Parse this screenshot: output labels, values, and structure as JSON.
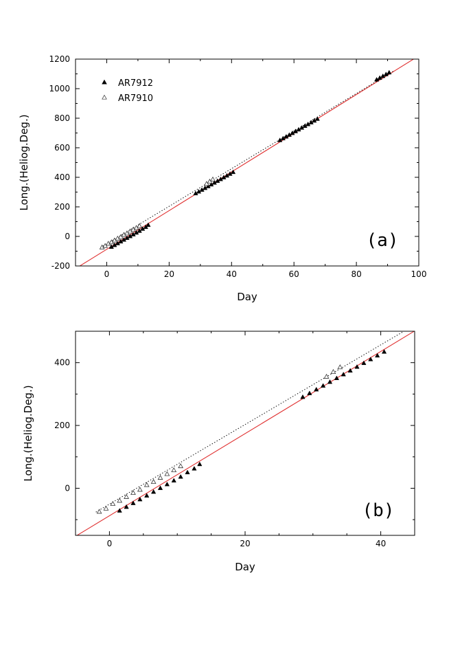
{
  "chart_data": [
    {
      "type": "scatter",
      "panel_label": "(a)",
      "xlabel": "Day",
      "ylabel": "Long.(Heliog.Deg.)",
      "xlim": [
        -10,
        100
      ],
      "ylim": [
        -200,
        1200
      ],
      "x_ticks": [
        0,
        20,
        40,
        60,
        80,
        100
      ],
      "y_ticks": [
        -200,
        0,
        200,
        400,
        600,
        800,
        1000,
        1200
      ],
      "legend": [
        "AR7912",
        "AR7910"
      ],
      "legend_position": "top-left",
      "series": [
        {
          "name": "AR7912",
          "marker": "filled-triangle",
          "x": [
            1.5,
            2.5,
            3.5,
            4.5,
            5.5,
            6.5,
            7.5,
            8.5,
            9.5,
            10.5,
            11.5,
            12.5,
            13.3,
            28.5,
            29.5,
            30.5,
            31.5,
            32.5,
            33.5,
            34.5,
            35.5,
            36.5,
            37.5,
            38.5,
            39.5,
            40.5,
            55.5,
            56.5,
            57.5,
            58.5,
            59.5,
            60.5,
            61.5,
            62.5,
            63.5,
            64.5,
            65.5,
            66.5,
            67.5,
            86.5,
            87.5,
            88.5,
            89.5,
            90.5
          ],
          "y": [
            -72,
            -60,
            -48,
            -36,
            -24,
            -12,
            0,
            12,
            24,
            36,
            50,
            62,
            76,
            290,
            302,
            314,
            326,
            338,
            350,
            362,
            374,
            386,
            398,
            410,
            422,
            434,
            650,
            662,
            674,
            686,
            698,
            710,
            722,
            734,
            746,
            758,
            770,
            782,
            794,
            1060,
            1072,
            1084,
            1096,
            1108
          ]
        },
        {
          "name": "AR7910",
          "marker": "open-triangle",
          "x": [
            -1.5,
            -0.5,
            0.5,
            1.5,
            2.5,
            3.5,
            4.5,
            5.5,
            6.5,
            7.5,
            8.5,
            9.5,
            10.5,
            32.0,
            33.0,
            34.0
          ],
          "y": [
            -75,
            -65,
            -50,
            -40,
            -28,
            -15,
            -5,
            10,
            20,
            33,
            45,
            57,
            70,
            355,
            370,
            385
          ]
        }
      ],
      "fit_lines": [
        {
          "name": "AR7912 fit",
          "style": "solid",
          "color": "#e03030",
          "x": [
            -10,
            100
          ],
          "y": [
            -218,
            1222
          ]
        },
        {
          "name": "AR7910 fit",
          "style": "dotted",
          "color": "#000000",
          "x": [
            -2,
            92
          ],
          "y": [
            -76,
            1120
          ]
        }
      ]
    },
    {
      "type": "scatter",
      "panel_label": "(b)",
      "xlabel": "Day",
      "ylabel": "Long.(Heliog.Deg.)",
      "xlim": [
        -5,
        45
      ],
      "ylim": [
        -150,
        500
      ],
      "x_ticks": [
        0,
        20,
        40
      ],
      "y_ticks": [
        0,
        200,
        400
      ],
      "series": [
        {
          "name": "AR7912",
          "marker": "filled-triangle",
          "x": [
            1.5,
            2.5,
            3.5,
            4.5,
            5.5,
            6.5,
            7.5,
            8.5,
            9.5,
            10.5,
            11.5,
            12.5,
            13.3,
            28.5,
            29.5,
            30.5,
            31.5,
            32.5,
            33.5,
            34.5,
            35.5,
            36.5,
            37.5,
            38.5,
            39.5,
            40.5
          ],
          "y": [
            -72,
            -60,
            -48,
            -36,
            -24,
            -12,
            0,
            12,
            24,
            36,
            50,
            62,
            76,
            290,
            302,
            314,
            326,
            338,
            350,
            362,
            374,
            386,
            398,
            410,
            422,
            434
          ]
        },
        {
          "name": "AR7910",
          "marker": "open-triangle",
          "x": [
            -1.5,
            -0.5,
            0.5,
            1.5,
            2.5,
            3.5,
            4.5,
            5.5,
            6.5,
            7.5,
            8.5,
            9.5,
            10.5,
            32.0,
            33.0,
            34.0
          ],
          "y": [
            -75,
            -65,
            -50,
            -40,
            -28,
            -15,
            -5,
            10,
            20,
            33,
            45,
            57,
            70,
            355,
            370,
            385
          ]
        }
      ],
      "fit_lines": [
        {
          "name": "AR7912 fit",
          "style": "solid",
          "color": "#e03030",
          "x": [
            -5,
            45
          ],
          "y": [
            -153,
            501
          ]
        },
        {
          "name": "AR7910 fit",
          "style": "dotted",
          "color": "#000000",
          "x": [
            -2,
            45
          ],
          "y": [
            -76,
            520
          ]
        }
      ]
    }
  ]
}
